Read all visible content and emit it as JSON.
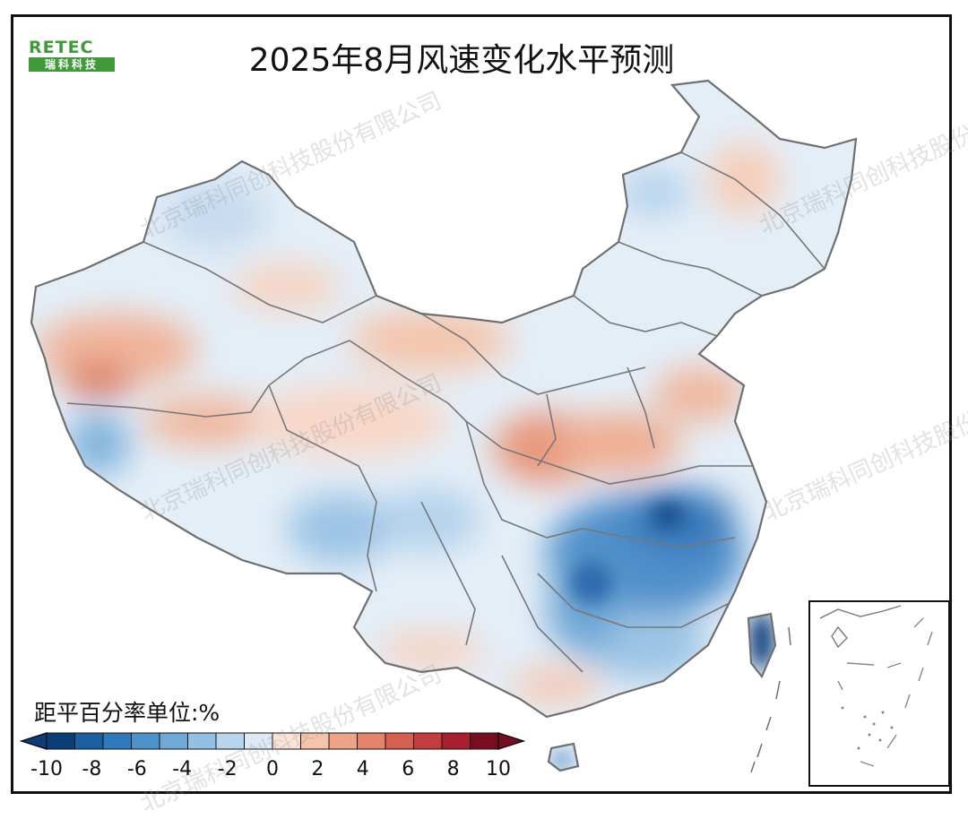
{
  "logo": {
    "wordmark": "RETEC",
    "subtitle": "瑞科科技"
  },
  "title": "2025年8月风速变化水平预测",
  "watermark_text": "北京瑞科同创科技股份有限公司",
  "legend": {
    "unit_label": "距平百分率单位:%",
    "ticks": [
      "-10",
      "-8",
      "-6",
      "-4",
      "-2",
      "0",
      "2",
      "4",
      "6",
      "8",
      "10"
    ],
    "colors": [
      "#0b3d79",
      "#1b5fa3",
      "#2f79bd",
      "#4a93cb",
      "#6ea9d7",
      "#93c0e3",
      "#b8d5ee",
      "#dde9f5",
      "#fbe3d7",
      "#f6c3ab",
      "#eea587",
      "#e4846a",
      "#d6604f",
      "#c23d3d",
      "#a81f2f",
      "#7a0c22"
    ],
    "range": [
      -10,
      10
    ]
  },
  "map": {
    "region": "China",
    "variable": "wind speed anomaly percentage",
    "period": "2025-08",
    "inset": "South China Sea islands"
  }
}
